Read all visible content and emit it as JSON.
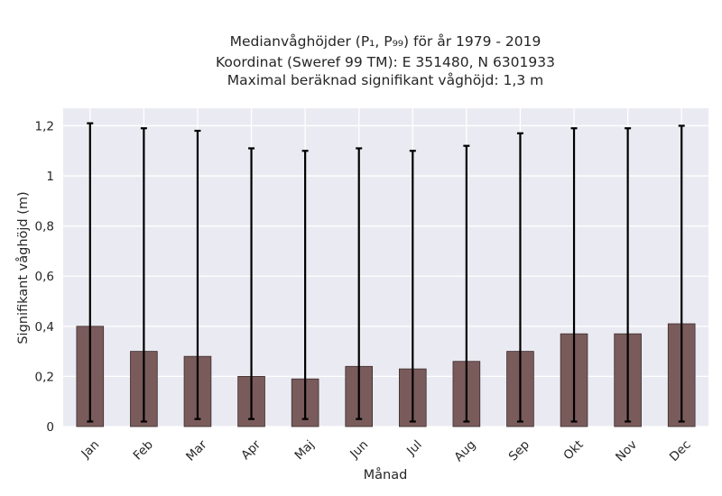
{
  "chart_data": {
    "type": "bar",
    "title_lines": [
      "Medianvåghöjder (P₁, P₉₉) för år 1979 - 2019",
      "Koordinat (Sweref 99 TM): E 351480, N 6301933",
      "Maximal beräknad signifikant våghöjd: 1,3 m"
    ],
    "xlabel": "Månad",
    "ylabel": "Signifikant våghöjd (m)",
    "categories": [
      "Jan",
      "Feb",
      "Mar",
      "Apr",
      "Maj",
      "Jun",
      "Jul",
      "Aug",
      "Sep",
      "Okt",
      "Nov",
      "Dec"
    ],
    "values": [
      0.4,
      0.3,
      0.28,
      0.2,
      0.19,
      0.24,
      0.23,
      0.26,
      0.3,
      0.37,
      0.37,
      0.41
    ],
    "error_low": [
      0.02,
      0.02,
      0.03,
      0.03,
      0.03,
      0.03,
      0.02,
      0.02,
      0.02,
      0.02,
      0.02,
      0.02
    ],
    "error_high": [
      1.21,
      1.19,
      1.18,
      1.11,
      1.1,
      1.11,
      1.1,
      1.12,
      1.17,
      1.19,
      1.19,
      1.2
    ],
    "ylim": [
      0,
      1.27
    ],
    "yticks": [
      0,
      0.2,
      0.4,
      0.6,
      0.8,
      1,
      1.2
    ],
    "ytick_labels": [
      "0",
      "0,2",
      "0,4",
      "0,6",
      "0,8",
      "1",
      "1,2"
    ],
    "grid": true,
    "colors": {
      "bar": "#7a5b5b",
      "bar_edge": "#3b2c2c",
      "plot_background": "#eaeaf2",
      "grid": "#ffffff",
      "error_bar": "#000000"
    }
  }
}
